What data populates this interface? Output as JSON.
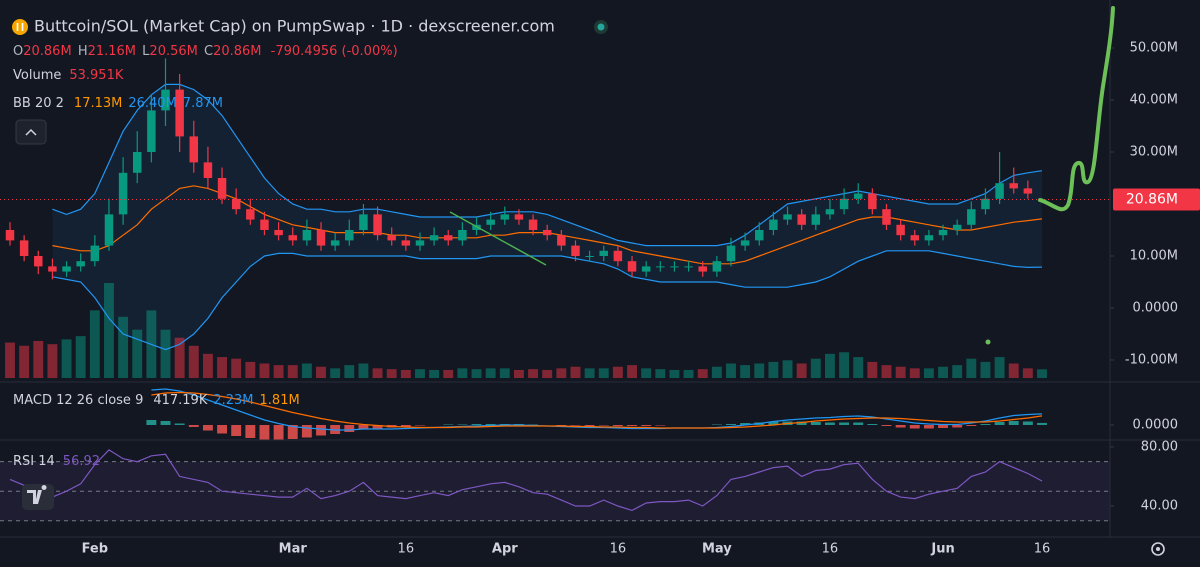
{
  "header": {
    "title": "Buttcoin/SOL (Market Cap) on PumpSwap · 1D · dexscreener.com",
    "ohlc": [
      {
        "label": "O",
        "value": "20.86M"
      },
      {
        "label": "H",
        "value": "21.16M"
      },
      {
        "label": "L",
        "value": "20.56M"
      },
      {
        "label": "C",
        "value": "20.86M"
      }
    ],
    "change": "-790.4956 (-0.00%)",
    "volume_label": "Volume",
    "volume_value": "53.951K",
    "bb_label": "BB 20 2",
    "bb_values": [
      "17.13M",
      "26.40M",
      "7.87M"
    ],
    "macd_label": "MACD 12 26 close 9",
    "macd_values": [
      "417.19K",
      "2.23M",
      "1.81M"
    ],
    "rsi_label": "RSI 14",
    "rsi_value": "56.92"
  },
  "chart_data": {
    "type": "candlestick",
    "categories": [
      null,
      null,
      null,
      null,
      null,
      null,
      "Feb",
      null,
      null,
      null,
      null,
      null,
      null,
      null,
      null,
      null,
      null,
      null,
      null,
      null,
      "Mar",
      null,
      null,
      null,
      null,
      null,
      null,
      null,
      "16",
      null,
      null,
      null,
      null,
      null,
      null,
      "Apr",
      null,
      null,
      null,
      null,
      null,
      null,
      null,
      "16",
      null,
      null,
      null,
      null,
      null,
      null,
      "May",
      null,
      null,
      null,
      null,
      null,
      null,
      null,
      "16",
      null,
      null,
      null,
      null,
      null,
      null,
      null,
      "Jun",
      null,
      null,
      null,
      null,
      null,
      null,
      "16"
    ],
    "open": [
      15,
      13,
      10,
      8,
      7,
      8,
      9,
      12,
      18,
      26,
      30,
      38,
      42,
      33,
      28,
      25,
      21,
      19,
      17,
      15,
      14,
      13,
      15,
      12,
      13,
      15,
      18,
      14,
      13,
      12,
      13,
      14,
      13,
      15,
      16,
      17,
      18,
      17,
      15,
      14,
      12,
      10,
      10,
      11,
      9,
      7,
      8,
      8,
      8,
      8,
      7,
      9,
      12,
      13,
      15,
      17,
      18,
      16,
      18,
      19,
      21,
      22,
      19,
      16,
      14,
      13,
      14,
      15,
      16,
      19,
      21,
      24,
      23,
      20.86
    ],
    "high": [
      16.5,
      14,
      11,
      9.5,
      9,
      10.5,
      14,
      21,
      29,
      34,
      41,
      48,
      45,
      36,
      31,
      27,
      23,
      21,
      18.5,
      16.5,
      15.5,
      17,
      16.5,
      14.5,
      17,
      20,
      19.5,
      15.5,
      14,
      14.5,
      15.5,
      15,
      16.5,
      17.5,
      18.5,
      19.5,
      19,
      18,
      16,
      15,
      13,
      11,
      12,
      12,
      10,
      9,
      9,
      9,
      9,
      9,
      10,
      13.5,
      14.5,
      16.5,
      18.5,
      19.5,
      19,
      19.5,
      21,
      23,
      24,
      23,
      20,
      17,
      15,
      15,
      16,
      17,
      20.5,
      23,
      30,
      27,
      24.5,
      21.16
    ],
    "low": [
      12,
      9,
      6.5,
      5.5,
      6,
      7,
      8,
      11,
      16,
      24,
      28,
      35,
      30,
      26,
      23,
      20,
      18,
      16,
      14,
      13,
      12,
      12,
      11,
      11,
      12,
      14,
      13,
      12,
      11,
      11,
      12,
      12,
      12,
      14,
      15,
      16,
      16,
      14,
      13,
      11,
      9,
      9,
      9,
      8,
      6,
      6,
      7,
      7,
      7,
      6,
      6,
      8,
      11,
      12,
      14,
      16,
      15,
      15,
      17,
      18,
      20,
      18,
      15,
      13,
      12,
      12,
      13,
      14,
      15,
      18,
      20,
      22,
      21,
      20.56
    ],
    "close": [
      13,
      10,
      8,
      7,
      8,
      9,
      12,
      18,
      26,
      30,
      38,
      42,
      33,
      28,
      25,
      21,
      19,
      17,
      15,
      14,
      13,
      15,
      12,
      13,
      15,
      18,
      14,
      13,
      12,
      13,
      14,
      13,
      15,
      16,
      17,
      18,
      17,
      15,
      14,
      12,
      10,
      10,
      11,
      9,
      7,
      8,
      8,
      8,
      8,
      7,
      9,
      12,
      13,
      15,
      17,
      18,
      16,
      18,
      19,
      21,
      22,
      19,
      16,
      14,
      13,
      14,
      15,
      16,
      19,
      21,
      24,
      23,
      22,
      20.86
    ],
    "up_color": "#089981",
    "down_color": "#f23645",
    "ylim": [
      -13.85,
      59.23
    ],
    "yticks": [
      {
        "value": 50,
        "label": "50.00M"
      },
      {
        "value": 40,
        "label": "40.00M"
      },
      {
        "value": 30,
        "label": "30.00M"
      },
      {
        "value": 10,
        "label": "10.00M"
      },
      {
        "value": 0,
        "label": "0.0000"
      },
      {
        "value": -10,
        "label": "-10.00M"
      }
    ],
    "price_label": "20.86M",
    "volume": {
      "values": [
        220,
        200,
        230,
        210,
        240,
        260,
        420,
        590,
        380,
        300,
        420,
        300,
        250,
        200,
        150,
        130,
        120,
        100,
        90,
        80,
        80,
        90,
        70,
        60,
        80,
        90,
        60,
        55,
        50,
        55,
        50,
        50,
        60,
        55,
        60,
        60,
        50,
        55,
        50,
        60,
        70,
        60,
        60,
        70,
        80,
        60,
        55,
        50,
        50,
        55,
        70,
        90,
        80,
        90,
        100,
        110,
        90,
        120,
        150,
        160,
        130,
        100,
        80,
        70,
        60,
        60,
        70,
        80,
        120,
        100,
        130,
        90,
        60,
        53.951
      ]
    },
    "bollinger": {
      "upper": [
        null,
        null,
        null,
        19,
        18,
        19,
        22,
        28,
        34,
        38,
        41,
        43,
        43,
        42,
        40,
        37,
        33,
        29,
        25,
        22,
        20,
        19,
        19,
        18.5,
        18.5,
        19,
        19,
        18.5,
        18,
        17.5,
        17.5,
        17.5,
        17.5,
        17.5,
        18,
        18.5,
        18.5,
        18.5,
        18,
        17,
        16,
        15,
        14,
        13,
        12.5,
        12,
        12,
        12,
        12,
        12,
        12,
        12.5,
        14,
        16,
        18,
        20,
        20.5,
        21,
        21.5,
        22,
        22.5,
        22,
        21.5,
        21,
        20.5,
        20,
        20,
        20,
        21,
        22,
        24,
        25.5,
        26,
        26.4
      ],
      "basis": [
        null,
        null,
        null,
        12,
        11.5,
        11,
        11,
        12,
        14,
        16,
        19,
        21,
        23,
        23.5,
        23,
        22,
        21,
        19.5,
        18,
        17,
        16,
        15.5,
        15,
        14.5,
        14.5,
        14.5,
        14.5,
        14,
        14,
        13.5,
        13.5,
        13.5,
        13.5,
        13.5,
        14,
        14,
        14.5,
        14.5,
        14.5,
        14,
        13.5,
        13,
        12.5,
        12,
        11,
        10.5,
        10,
        9.5,
        9,
        8.5,
        8.5,
        8.5,
        9,
        10,
        11,
        12,
        13,
        14,
        15,
        16,
        17,
        17.5,
        17.5,
        17,
        16.5,
        16,
        15.5,
        15,
        15,
        15.5,
        16,
        16.5,
        16.8,
        17.13
      ],
      "lower": [
        null,
        null,
        null,
        6,
        5.5,
        5,
        2,
        -2,
        -5,
        -6,
        -7,
        -8,
        -7,
        -5,
        -2,
        2,
        5,
        8,
        10,
        10.5,
        10.5,
        10,
        10,
        10,
        10,
        10,
        10,
        10,
        10,
        9.5,
        9.5,
        9.5,
        9.5,
        9.5,
        10,
        10,
        10,
        10,
        10,
        10,
        9.5,
        9,
        8.5,
        7.5,
        6,
        5.5,
        5,
        5,
        5,
        5,
        5,
        4.5,
        4,
        4,
        4,
        4,
        4.5,
        5,
        6,
        7.5,
        9,
        10,
        11,
        11,
        11,
        11,
        10.5,
        10,
        9.5,
        9,
        8.5,
        8,
        7.8,
        7.87
      ],
      "band_color": "#2196f3",
      "basis_color": "#ff6d00"
    },
    "macd": {
      "macd": [
        null,
        null,
        null,
        null,
        null,
        null,
        null,
        null,
        null,
        null,
        7,
        7.2,
        6.8,
        6,
        5,
        4,
        3,
        2,
        1,
        0.3,
        -0.3,
        -0.6,
        -0.8,
        -1,
        -1,
        -0.8,
        -0.8,
        -0.8,
        -0.7,
        -0.6,
        -0.5,
        -0.4,
        -0.3,
        -0.2,
        -0.1,
        0,
        0,
        -0.1,
        -0.2,
        -0.3,
        -0.4,
        -0.5,
        -0.5,
        -0.6,
        -0.7,
        -0.7,
        -0.7,
        -0.6,
        -0.6,
        -0.6,
        -0.5,
        -0.3,
        0,
        0.3,
        0.7,
        1,
        1.2,
        1.4,
        1.5,
        1.7,
        1.8,
        1.6,
        1.2,
        0.8,
        0.4,
        0.2,
        0.1,
        0.1,
        0.4,
        0.8,
        1.4,
        1.9,
        2.1,
        2.23
      ],
      "signal": [
        null,
        null,
        null,
        null,
        null,
        null,
        null,
        null,
        null,
        null,
        6,
        6.4,
        6.5,
        6.4,
        6.1,
        5.7,
        5.2,
        4.6,
        3.9,
        3.2,
        2.5,
        1.9,
        1.3,
        0.8,
        0.4,
        0.1,
        -0.1,
        -0.3,
        -0.4,
        -0.5,
        -0.5,
        -0.5,
        -0.4,
        -0.4,
        -0.3,
        -0.2,
        -0.2,
        -0.2,
        -0.2,
        -0.2,
        -0.3,
        -0.3,
        -0.4,
        -0.4,
        -0.5,
        -0.5,
        -0.6,
        -0.6,
        -0.6,
        -0.6,
        -0.6,
        -0.5,
        -0.4,
        -0.2,
        0,
        0.3,
        0.5,
        0.8,
        1,
        1.2,
        1.3,
        1.4,
        1.4,
        1.3,
        1.1,
        0.9,
        0.7,
        0.6,
        0.6,
        0.6,
        0.8,
        1.1,
        1.4,
        1.81
      ],
      "histogram": [
        null,
        null,
        null,
        null,
        null,
        null,
        null,
        null,
        null,
        null,
        1,
        0.8,
        0.3,
        -0.4,
        -1.1,
        -1.7,
        -2.2,
        -2.6,
        -2.9,
        -2.9,
        -2.8,
        -2.5,
        -2.1,
        -1.8,
        -1.4,
        -0.9,
        -0.7,
        -0.5,
        -0.3,
        -0.1,
        0,
        0.1,
        0.1,
        0.2,
        0.2,
        0.2,
        0.2,
        0.1,
        0,
        -0.1,
        -0.1,
        -0.2,
        -0.1,
        -0.2,
        -0.2,
        -0.2,
        -0.1,
        0,
        0,
        0,
        0.1,
        0.2,
        0.4,
        0.5,
        0.7,
        0.7,
        0.7,
        0.6,
        0.5,
        0.5,
        0.5,
        0.2,
        -0.2,
        -0.5,
        -0.7,
        -0.7,
        -0.6,
        -0.5,
        -0.2,
        0.2,
        0.6,
        0.8,
        0.7,
        0.41719
      ],
      "macd_color": "#2196f3",
      "signal_color": "#ff6d00",
      "ylim": [
        -3,
        8
      ],
      "yticks": [
        {
          "value": 0,
          "label": "0.0000"
        }
      ]
    },
    "rsi": {
      "values": [
        58,
        54,
        48,
        46,
        50,
        55,
        68,
        78,
        72,
        70,
        74,
        75,
        60,
        58,
        56,
        50,
        49,
        48,
        47,
        46,
        46,
        52,
        45,
        47,
        50,
        56,
        47,
        46,
        45,
        47,
        49,
        47,
        51,
        53,
        55,
        56,
        53,
        49,
        48,
        44,
        40,
        40,
        44,
        40,
        37,
        42,
        43,
        43,
        44,
        40,
        47,
        58,
        60,
        63,
        66,
        67,
        60,
        64,
        65,
        68,
        69,
        58,
        50,
        46,
        45,
        48,
        50,
        52,
        60,
        63,
        70,
        66,
        62,
        56.92
      ],
      "color": "#7e57c2",
      "levels": [
        70,
        50,
        30
      ],
      "ylim": [
        19,
        84
      ],
      "yticks": [
        {
          "value": 80,
          "label": "80.00"
        },
        {
          "value": 40,
          "label": "40.00"
        }
      ]
    }
  }
}
